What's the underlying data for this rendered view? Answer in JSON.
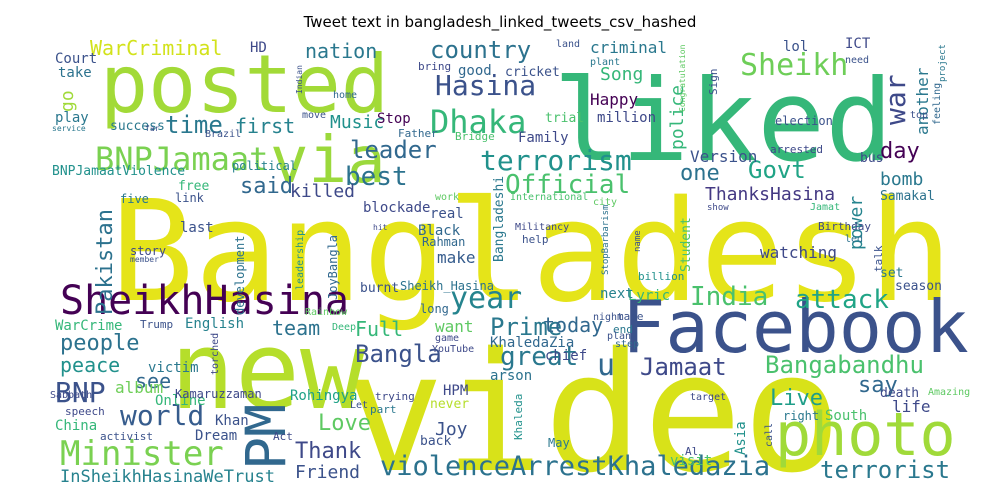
{
  "title": "Tweet text in bangladesh_linked_tweets_csv_hashed",
  "words": [
    {
      "text": "Bangladesh",
      "color": "#e5e419"
    },
    {
      "text": "posted",
      "color": "#a2da37"
    },
    {
      "text": "liked",
      "color": "#35b779"
    },
    {
      "text": "video",
      "color": "#d8e219"
    },
    {
      "text": "new",
      "color": "#b5de2b"
    },
    {
      "text": "Facebook",
      "color": "#3b528b"
    },
    {
      "text": "photo",
      "color": "#a0da39"
    },
    {
      "text": "via",
      "color": "#9bd93c"
    },
    {
      "text": "PM",
      "color": "#31688e"
    },
    {
      "text": "SheikhHasina",
      "color": "#440154"
    },
    {
      "text": "BNPJamaat",
      "color": "#7ad151"
    },
    {
      "text": "Minister",
      "color": "#7ad151"
    },
    {
      "text": "BNP",
      "color": "#3b528b"
    },
    {
      "text": "world",
      "color": "#365c8d"
    },
    {
      "text": "people",
      "color": "#2c728e"
    },
    {
      "text": "peace",
      "color": "#21918c"
    },
    {
      "text": "WarCriminal",
      "color": "#d2e21b"
    },
    {
      "text": "country",
      "color": "#2c728e"
    },
    {
      "text": "nation",
      "color": "#2a788e"
    },
    {
      "text": "Hasina",
      "color": "#3b528b"
    },
    {
      "text": "Dhaka",
      "color": "#35b779"
    },
    {
      "text": "Sheikh",
      "color": "#6ece58"
    },
    {
      "text": "war",
      "color": "#3e4989"
    },
    {
      "text": "terrorism",
      "color": "#21918c"
    },
    {
      "text": "Official",
      "color": "#4ac16d"
    },
    {
      "text": "leader",
      "color": "#31688e"
    },
    {
      "text": "best",
      "color": "#2c728e"
    },
    {
      "text": "Govt",
      "color": "#20a486"
    },
    {
      "text": "day",
      "color": "#440154"
    },
    {
      "text": "time",
      "color": "#2a788e"
    },
    {
      "text": "first",
      "color": "#26828e"
    },
    {
      "text": "said",
      "color": "#31688e"
    },
    {
      "text": "killed",
      "color": "#3e4989"
    },
    {
      "text": "Music",
      "color": "#21918c"
    },
    {
      "text": "year",
      "color": "#25848e"
    },
    {
      "text": "India",
      "color": "#4ac16d"
    },
    {
      "text": "attack",
      "color": "#20a486"
    },
    {
      "text": "Prime",
      "color": "#2a788e"
    },
    {
      "text": "Bangla",
      "color": "#3b528b"
    },
    {
      "text": "great",
      "color": "#2a788e"
    },
    {
      "text": "Jamaat",
      "color": "#3e4989"
    },
    {
      "text": "Bangabandhu",
      "color": "#4ac16d"
    },
    {
      "text": "Live",
      "color": "#1f9e89"
    },
    {
      "text": "say",
      "color": "#31688e"
    },
    {
      "text": "u",
      "color": "#31688e"
    },
    {
      "text": "Love",
      "color": "#5ec962"
    },
    {
      "text": "Thank",
      "color": "#3e4989"
    },
    {
      "text": "violenceArrestKhaledazia",
      "color": "#2c728e"
    },
    {
      "text": "terrorist",
      "color": "#2a788e"
    },
    {
      "text": "InSheikhHasinaWeTrust",
      "color": "#26828e"
    },
    {
      "text": "Friend",
      "color": "#3b528b"
    },
    {
      "text": "Joy",
      "color": "#3b528b"
    },
    {
      "text": "ThanksHasina",
      "color": "#443983"
    },
    {
      "text": "one",
      "color": "#2c728e"
    },
    {
      "text": "Version",
      "color": "#3b528b"
    },
    {
      "text": "bomb",
      "color": "#2a788e"
    },
    {
      "text": "power",
      "color": "#25848e"
    },
    {
      "text": "Pakistan",
      "color": "#2c728e"
    },
    {
      "text": "today",
      "color": "#31688e"
    },
    {
      "text": "team",
      "color": "#2c728e"
    },
    {
      "text": "Full",
      "color": "#35b779"
    },
    {
      "text": "see",
      "color": "#31688e"
    },
    {
      "text": "album",
      "color": "#6ece58"
    },
    {
      "text": "police",
      "color": "#35b779"
    },
    {
      "text": "another",
      "color": "#2a788e"
    },
    {
      "text": "Song",
      "color": "#35b779"
    },
    {
      "text": "criminal",
      "color": "#2a788e"
    },
    {
      "text": "Happy",
      "color": "#440154"
    },
    {
      "text": "Family",
      "color": "#3e4989"
    },
    {
      "text": "Stop",
      "color": "#440154"
    },
    {
      "text": "make",
      "color": "#365c8d"
    },
    {
      "text": "watching",
      "color": "#3e4989"
    },
    {
      "text": "Black",
      "color": "#31688e"
    },
    {
      "text": "Lyric",
      "color": "#35b779"
    },
    {
      "text": "next",
      "color": "#26828e"
    },
    {
      "text": "want",
      "color": "#5ec962"
    },
    {
      "text": "HPM",
      "color": "#3e4989"
    },
    {
      "text": "Rohingya",
      "color": "#1fa187"
    },
    {
      "text": "Khan",
      "color": "#3b528b"
    },
    {
      "text": "Dream",
      "color": "#3b528b"
    },
    {
      "text": "Online",
      "color": "#35b779"
    },
    {
      "text": "China",
      "color": "#35b779"
    },
    {
      "text": "life",
      "color": "#3e4989"
    },
    {
      "text": "South",
      "color": "#4ac16d"
    },
    {
      "text": "right",
      "color": "#2a788e"
    },
    {
      "text": "Asia",
      "color": "#21918c"
    },
    {
      "text": "visit",
      "color": "#4ac16d"
    },
    {
      "text": "May",
      "color": "#2a788e"
    },
    {
      "text": "chief",
      "color": "#3e4989"
    },
    {
      "text": "arson",
      "color": "#2c728e"
    },
    {
      "text": "KhaledaZia",
      "color": "#31688e"
    },
    {
      "text": "English",
      "color": "#26828e"
    },
    {
      "text": "WarCrime",
      "color": "#35b779"
    },
    {
      "text": "Trump",
      "color": "#3b528b"
    },
    {
      "text": "victim",
      "color": "#2a788e"
    },
    {
      "text": "Kamaruzzaman",
      "color": "#3e4989"
    },
    {
      "text": "Court",
      "color": "#3b528b"
    },
    {
      "text": "take",
      "color": "#2c728e"
    },
    {
      "text": "play",
      "color": "#2a788e"
    },
    {
      "text": "go",
      "color": "#a0da39"
    },
    {
      "text": "HD",
      "color": "#3e4989"
    },
    {
      "text": "ICT",
      "color": "#3e4989"
    },
    {
      "text": "lol",
      "color": "#3b528b"
    },
    {
      "text": "good",
      "color": "#31688e"
    },
    {
      "text": "cricket",
      "color": "#3b528b"
    },
    {
      "text": "million",
      "color": "#3e4989"
    },
    {
      "text": "trial",
      "color": "#4ac16d"
    },
    {
      "text": "success",
      "color": "#2a788e"
    },
    {
      "text": "free",
      "color": "#35b779"
    },
    {
      "text": "BNPJamaatViolence",
      "color": "#21918c"
    },
    {
      "text": "political",
      "color": "#26828e"
    },
    {
      "text": "development",
      "color": "#2c728e"
    },
    {
      "text": "JoyBangla",
      "color": "#31688e"
    },
    {
      "text": "leadership",
      "color": "#21918c"
    },
    {
      "text": "blockade",
      "color": "#3e4989"
    },
    {
      "text": "real",
      "color": "#3b528b"
    },
    {
      "text": "Rahman",
      "color": "#31688e"
    },
    {
      "text": "Bangladeshi",
      "color": "#2a788e"
    },
    {
      "text": "Student",
      "color": "#4ac16d"
    },
    {
      "text": "Birthday",
      "color": "#3e4989"
    },
    {
      "text": "season",
      "color": "#3b528b"
    },
    {
      "text": "set",
      "color": "#2a788e"
    },
    {
      "text": "Samakal",
      "color": "#2c728e"
    },
    {
      "text": "bus",
      "color": "#3e4989"
    },
    {
      "text": "election",
      "color": "#3b528b"
    },
    {
      "text": "arrested",
      "color": "#3e4989"
    },
    {
      "text": "Jamat",
      "color": "#35b779"
    },
    {
      "text": "last",
      "color": "#3b528b"
    },
    {
      "text": "story",
      "color": "#3e4989"
    },
    {
      "text": "link",
      "color": "#3b528b"
    },
    {
      "text": "five",
      "color": "#2a788e"
    },
    {
      "text": "burnt",
      "color": "#3b528b"
    },
    {
      "text": "Sheikh_Hasina",
      "color": "#2c728e"
    },
    {
      "text": "long",
      "color": "#31688e"
    },
    {
      "text": "never",
      "color": "#b5de2b"
    },
    {
      "text": "back",
      "color": "#3b528b"
    },
    {
      "text": "part",
      "color": "#2a788e"
    },
    {
      "text": "Act",
      "color": "#3e4989"
    },
    {
      "text": "activist",
      "color": "#3b528b"
    },
    {
      "text": "speech",
      "color": "#3e4989"
    },
    {
      "text": "death",
      "color": "#3e4989"
    },
    {
      "text": "Amazing",
      "color": "#5ec962"
    },
    {
      "text": "talk",
      "color": "#3b528b"
    },
    {
      "text": "led",
      "color": "#2c728e"
    },
    {
      "text": "Al",
      "color": "#3e4989"
    },
    {
      "text": "end",
      "color": "#2a788e"
    },
    {
      "text": "made",
      "color": "#3b528b"
    },
    {
      "text": "billion",
      "color": "#21918c"
    },
    {
      "text": "Bridge",
      "color": "#4ac16d"
    },
    {
      "text": "Father",
      "color": "#31688e"
    },
    {
      "text": "Brazil",
      "color": "#3b528b"
    },
    {
      "text": "home",
      "color": "#31688e"
    },
    {
      "text": "move",
      "color": "#3b528b"
    },
    {
      "text": "bring",
      "color": "#3e4989"
    },
    {
      "text": "land",
      "color": "#3b528b"
    },
    {
      "text": "plant",
      "color": "#2a788e"
    },
    {
      "text": "Sign",
      "color": "#3b528b"
    },
    {
      "text": "top",
      "color": "#3b528b"
    },
    {
      "text": "need",
      "color": "#3b528b"
    },
    {
      "text": "feeling",
      "color": "#31688e"
    },
    {
      "text": "project",
      "color": "#2a788e"
    },
    {
      "text": "Congratulation",
      "color": "#5ec962"
    },
    {
      "text": "International",
      "color": "#4ac16d"
    },
    {
      "text": "city",
      "color": "#5ec962"
    },
    {
      "text": "Militancy",
      "color": "#3e4989"
    },
    {
      "text": "help",
      "color": "#3b528b"
    },
    {
      "text": "StopBarbarism",
      "color": "#2c728e"
    },
    {
      "text": "name",
      "color": "#3b528b"
    },
    {
      "text": "show",
      "color": "#3e4989"
    },
    {
      "text": "work",
      "color": "#5ec962"
    },
    {
      "text": "Rainbow",
      "color": "#5ec962"
    },
    {
      "text": "Deep",
      "color": "#35b779"
    },
    {
      "text": "YouTube",
      "color": "#3e4989"
    },
    {
      "text": "game",
      "color": "#3e4989"
    },
    {
      "text": "night",
      "color": "#3b528b"
    },
    {
      "text": "step",
      "color": "#31688e"
    },
    {
      "text": "plan",
      "color": "#3b528b"
    },
    {
      "text": "trying",
      "color": "#3e4989"
    },
    {
      "text": "Let",
      "color": "#3b528b"
    },
    {
      "text": "target",
      "color": "#3e4989"
    },
    {
      "text": "Sabbath",
      "color": "#3e4989"
    },
    {
      "text": "torched",
      "color": "#3e4989"
    },
    {
      "text": "Khaleda",
      "color": "#21918c"
    },
    {
      "text": "call",
      "color": "#3b528b"
    },
    {
      "text": "member",
      "color": "#3b528b"
    },
    {
      "text": "Indian",
      "color": "#3b528b"
    },
    {
      "text": "service",
      "color": "#2a788e"
    },
    {
      "text": "far",
      "color": "#3b528b"
    },
    {
      "text": "hit",
      "color": "#3e4989"
    }
  ]
}
